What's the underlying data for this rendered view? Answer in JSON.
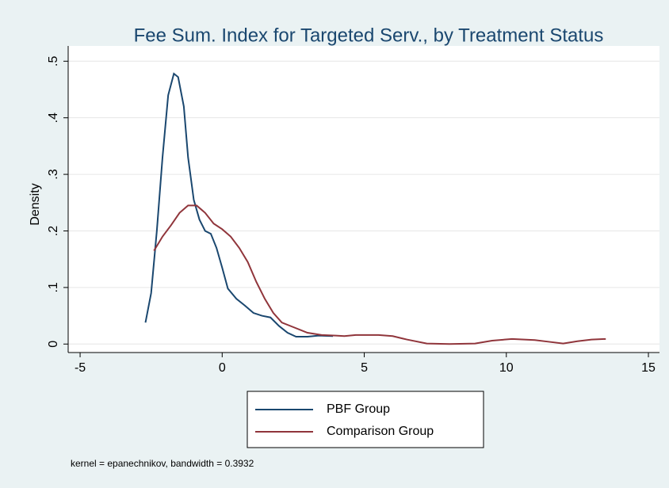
{
  "chart_data": {
    "type": "line",
    "title": "Fee Sum. Index for Targeted Serv., by Treatment Status",
    "y_label": "Density",
    "note": "kernel = epanechnikov, bandwidth = 0.3932",
    "xlim": [
      -5.42,
      15.39
    ],
    "ylim": [
      -0.015,
      0.527
    ],
    "xticks": [
      -5,
      0,
      5,
      10,
      15
    ],
    "yticks": [
      0,
      {
        "value": 0.1,
        "label": ".1"
      },
      {
        "value": 0.2,
        "label": ".2"
      },
      {
        "value": 0.3,
        "label": ".3"
      },
      {
        "value": 0.4,
        "label": ".4"
      },
      {
        "value": 0.5,
        "label": ".5"
      }
    ],
    "grid": true,
    "legend": "bottom",
    "series": [
      {
        "name": "PBF Group",
        "color": "#1a476f",
        "x": [
          -2.7,
          -2.5,
          -2.3,
          -2.1,
          -1.9,
          -1.7,
          -1.55,
          -1.35,
          -1.2,
          -1.0,
          -0.8,
          -0.6,
          -0.4,
          -0.2,
          0,
          0.2,
          0.5,
          0.8,
          1.1,
          1.4,
          1.7,
          2.0,
          2.3,
          2.6,
          3.0,
          3.4,
          3.9
        ],
        "values": [
          0.038,
          0.09,
          0.2,
          0.33,
          0.44,
          0.478,
          0.472,
          0.42,
          0.33,
          0.255,
          0.22,
          0.2,
          0.195,
          0.17,
          0.135,
          0.098,
          0.08,
          0.068,
          0.055,
          0.05,
          0.047,
          0.032,
          0.02,
          0.013,
          0.013,
          0.015,
          0.014
        ]
      },
      {
        "name": "Comparison Group",
        "color": "#90353b",
        "x": [
          -2.4,
          -2.1,
          -1.8,
          -1.5,
          -1.2,
          -0.9,
          -0.6,
          -0.3,
          0,
          0.3,
          0.6,
          0.9,
          1.2,
          1.5,
          1.8,
          2.1,
          2.5,
          3,
          3.5,
          4,
          4.3,
          4.7,
          5.5,
          6,
          6.5,
          7.2,
          8,
          8.9,
          9.5,
          10.2,
          11,
          11.5,
          12,
          12.5,
          13,
          13.5
        ],
        "values": [
          0.165,
          0.19,
          0.21,
          0.232,
          0.245,
          0.245,
          0.232,
          0.213,
          0.203,
          0.19,
          0.17,
          0.145,
          0.11,
          0.08,
          0.055,
          0.038,
          0.03,
          0.02,
          0.016,
          0.015,
          0.014,
          0.016,
          0.016,
          0.014,
          0.008,
          0.001,
          0,
          0.001,
          0.006,
          0.009,
          0.007,
          0.004,
          0.001,
          0.005,
          0.008,
          0.009
        ]
      }
    ]
  }
}
